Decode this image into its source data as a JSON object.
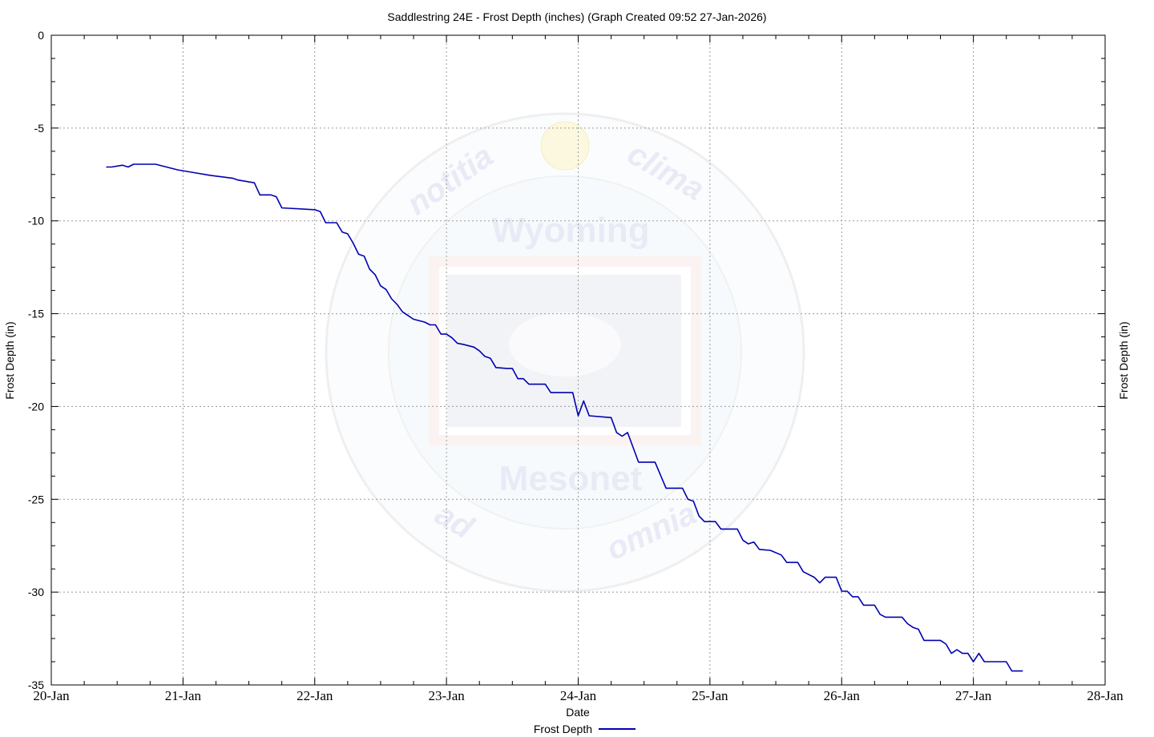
{
  "chart_data": {
    "type": "line",
    "title": "Saddlestring 24E - Frost Depth (inches) (Graph Created 09:52 27-Jan-2026)",
    "xlabel": "Date",
    "ylabel": "Frost Depth (in)",
    "ylabel_right": "Frost Depth (in)",
    "xlim": [
      "2026-01-20T00:00",
      "2026-01-28T00:00"
    ],
    "ylim": [
      -35,
      0
    ],
    "x_ticks": [
      "20-Jan",
      "21-Jan",
      "22-Jan",
      "23-Jan",
      "24-Jan",
      "25-Jan",
      "26-Jan",
      "27-Jan",
      "28-Jan"
    ],
    "y_ticks": [
      0,
      -5,
      -10,
      -15,
      -20,
      -25,
      -30,
      -35
    ],
    "grid": true,
    "legend_position": "bottom-center",
    "watermark": {
      "top": "notitia",
      "top_right": "clima",
      "bottom_left": "ad",
      "bottom_right": "omnia",
      "line1": "Wyoming",
      "line2": "Mesonet"
    },
    "series": [
      {
        "name": "Frost Depth",
        "color": "#0000b0",
        "x": [
          "2026-01-20T10:00",
          "2026-01-20T11:00",
          "2026-01-20T13:00",
          "2026-01-20T14:00",
          "2026-01-20T15:00",
          "2026-01-20T19:00",
          "2026-01-20T21:00",
          "2026-01-20T23:00",
          "2026-01-21T02:00",
          "2026-01-21T04:00",
          "2026-01-21T05:00",
          "2026-01-21T09:00",
          "2026-01-21T10:00",
          "2026-01-21T13:00",
          "2026-01-21T14:00",
          "2026-01-21T16:00",
          "2026-01-21T17:00",
          "2026-01-21T18:00",
          "2026-01-22T00:00",
          "2026-01-22T01:00",
          "2026-01-22T02:00",
          "2026-01-22T04:00",
          "2026-01-22T05:00",
          "2026-01-22T06:00",
          "2026-01-22T07:00",
          "2026-01-22T08:00",
          "2026-01-22T09:00",
          "2026-01-22T10:00",
          "2026-01-22T11:00",
          "2026-01-22T12:00",
          "2026-01-22T13:00",
          "2026-01-22T14:00",
          "2026-01-22T15:00",
          "2026-01-22T16:00",
          "2026-01-22T17:00",
          "2026-01-22T18:00",
          "2026-01-22T20:00",
          "2026-01-22T21:00",
          "2026-01-22T22:00",
          "2026-01-22T23:00",
          "2026-01-23T00:00",
          "2026-01-23T01:00",
          "2026-01-23T02:00",
          "2026-01-23T03:00",
          "2026-01-23T05:00",
          "2026-01-23T06:00",
          "2026-01-23T07:00",
          "2026-01-23T08:00",
          "2026-01-23T09:00",
          "2026-01-23T11:00",
          "2026-01-23T12:00",
          "2026-01-23T13:00",
          "2026-01-23T14:00",
          "2026-01-23T15:00",
          "2026-01-23T18:00",
          "2026-01-23T19:00",
          "2026-01-23T23:00",
          "2026-01-24T00:00",
          "2026-01-24T01:00",
          "2026-01-24T02:00",
          "2026-01-24T06:00",
          "2026-01-24T07:00",
          "2026-01-24T08:00",
          "2026-01-24T09:00",
          "2026-01-24T11:00",
          "2026-01-24T14:00",
          "2026-01-24T16:00",
          "2026-01-24T19:00",
          "2026-01-24T20:00",
          "2026-01-24T21:00",
          "2026-01-24T22:00",
          "2026-01-24T23:00",
          "2026-01-25T01:00",
          "2026-01-25T02:00",
          "2026-01-25T05:00",
          "2026-01-25T06:00",
          "2026-01-25T07:00",
          "2026-01-25T08:00",
          "2026-01-25T09:00",
          "2026-01-25T11:00",
          "2026-01-25T13:00",
          "2026-01-25T14:00",
          "2026-01-25T16:00",
          "2026-01-25T17:00",
          "2026-01-25T19:00",
          "2026-01-25T20:00",
          "2026-01-25T21:00",
          "2026-01-25T23:00",
          "2026-01-26T00:00",
          "2026-01-26T01:00",
          "2026-01-26T02:00",
          "2026-01-26T03:00",
          "2026-01-26T04:00",
          "2026-01-26T06:00",
          "2026-01-26T07:00",
          "2026-01-26T08:00",
          "2026-01-26T11:00",
          "2026-01-26T12:00",
          "2026-01-26T13:00",
          "2026-01-26T14:00",
          "2026-01-26T15:00",
          "2026-01-26T18:00",
          "2026-01-26T19:00",
          "2026-01-26T20:00",
          "2026-01-26T21:00",
          "2026-01-26T22:00",
          "2026-01-26T23:00",
          "2026-01-27T00:00",
          "2026-01-27T01:00",
          "2026-01-27T02:00",
          "2026-01-27T06:00",
          "2026-01-27T07:00",
          "2026-01-27T09:00"
        ],
        "y": [
          -7.1,
          -7.1,
          -7.0,
          -7.1,
          -6.95,
          -6.95,
          -7.1,
          -7.25,
          -7.4,
          -7.5,
          -7.55,
          -7.7,
          -7.8,
          -7.95,
          -8.6,
          -8.6,
          -8.7,
          -9.3,
          -9.4,
          -9.5,
          -10.1,
          -10.1,
          -10.6,
          -10.7,
          -11.2,
          -11.8,
          -11.9,
          -12.6,
          -12.9,
          -13.5,
          -13.7,
          -14.2,
          -14.5,
          -14.9,
          -15.1,
          -15.3,
          -15.45,
          -15.6,
          -15.6,
          -16.1,
          -16.1,
          -16.3,
          -16.6,
          -16.65,
          -16.8,
          -17.0,
          -17.3,
          -17.4,
          -17.9,
          -17.95,
          -17.95,
          -18.5,
          -18.5,
          -18.8,
          -18.8,
          -19.25,
          -19.25,
          -20.5,
          -19.7,
          -20.5,
          -20.6,
          -21.4,
          -21.6,
          -21.4,
          -23.0,
          -23.0,
          -24.4,
          -24.4,
          -25.0,
          -25.1,
          -25.9,
          -26.2,
          -26.2,
          -26.6,
          -26.6,
          -27.2,
          -27.4,
          -27.3,
          -27.7,
          -27.75,
          -28.0,
          -28.4,
          -28.4,
          -28.9,
          -29.2,
          -29.5,
          -29.2,
          -29.2,
          -29.95,
          -29.95,
          -30.25,
          -30.25,
          -30.7,
          -30.7,
          -31.2,
          -31.35,
          -31.35,
          -31.7,
          -31.9,
          -32.0,
          -32.6,
          -32.6,
          -32.8,
          -33.3,
          -33.1,
          -33.3,
          -33.3,
          -33.75,
          -33.3,
          -33.75,
          -33.75,
          -34.25,
          -34.25
        ]
      }
    ]
  }
}
